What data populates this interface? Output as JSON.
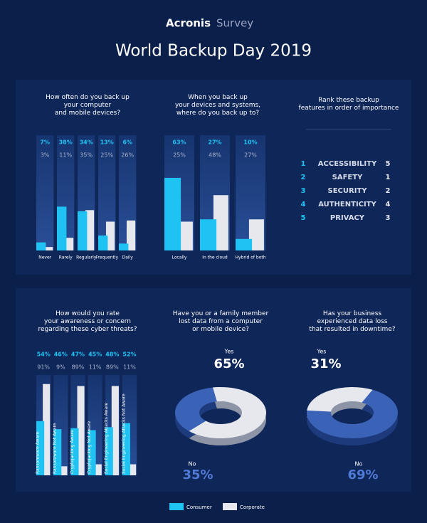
{
  "header": {
    "brand": "Acronis",
    "label": "Survey",
    "title": "World Backup Day 2019"
  },
  "chart_data": [
    {
      "type": "bar",
      "title": "How often do you back up\nyour computer\nand mobile devices?",
      "categories": [
        "Never",
        "Rarely",
        "Regularly",
        "Frequently",
        "Daily"
      ],
      "series": [
        {
          "name": "Consumer",
          "color": "#1fc3f3",
          "values": [
            7,
            38,
            34,
            13,
            6
          ],
          "value_labels": [
            "7%",
            "38%",
            "34%",
            "13%",
            "6%"
          ]
        },
        {
          "name": "Corporate",
          "color": "#e6e8ed",
          "values": [
            3,
            11,
            35,
            25,
            26
          ],
          "value_labels": [
            "3%",
            "11%",
            "35%",
            "25%",
            "26%"
          ]
        }
      ],
      "ylim": [
        0,
        100
      ]
    },
    {
      "type": "bar",
      "title": "When you back up\nyour devices and systems,\nwhere do you back up to?",
      "categories": [
        "Locally",
        "In the cloud",
        "Hybrid of both"
      ],
      "series": [
        {
          "color": "#1fc3f3",
          "values": [
            63,
            27,
            10
          ],
          "value_labels": [
            "63%",
            "27%",
            "10%"
          ]
        },
        {
          "color": "#e6e8ed",
          "values": [
            25,
            48,
            27
          ],
          "value_labels": [
            "25%",
            "48%",
            "27%"
          ]
        }
      ],
      "ylim": [
        0,
        100
      ]
    },
    {
      "type": "rank",
      "title": "Rank these backup\nfeatures in order of importance",
      "categories": [
        "ACCESSIBILITY",
        "SAFETY",
        "SECURITY",
        "AUTHENTICITY",
        "PRIVACY"
      ],
      "series": [
        {
          "color": "#1fc3f3",
          "values": [
            1,
            2,
            3,
            4,
            5
          ]
        },
        {
          "color": "#e6e8ed",
          "values": [
            5,
            1,
            2,
            4,
            3
          ]
        }
      ]
    },
    {
      "type": "bar",
      "title": "How would you rate\nyour awareness or concern\nregarding these cyber threats?",
      "categories": [
        "Ransomware Aware",
        "Ransomware Not Aware",
        "Cryptojacking Aware",
        "Cryptojacking Not Aware",
        "Social Engineering Attacks Aware",
        "Social Engineering Attacks Not Aware"
      ],
      "series": [
        {
          "color": "#1fc3f3",
          "values": [
            54,
            46,
            47,
            45,
            48,
            52
          ],
          "value_labels": [
            "54%",
            "46%",
            "47%",
            "45%",
            "48%",
            "52%"
          ]
        },
        {
          "color": "#e6e8ed",
          "values": [
            91,
            9,
            89,
            11,
            89,
            11
          ],
          "value_labels": [
            "91%",
            "9%",
            "89%",
            "11%",
            "89%",
            "11%"
          ]
        }
      ],
      "ylim": [
        0,
        100
      ]
    },
    {
      "type": "pie",
      "title": "Have you or a family member\nlost data from a computer\nor mobile device?",
      "categories": [
        "Yes",
        "No"
      ],
      "values": [
        65,
        35
      ],
      "value_labels": [
        "65%",
        "35%"
      ],
      "colors": [
        "#e6e8ed",
        "#3a63b8"
      ]
    },
    {
      "type": "pie",
      "title": "Has your business\nexperienced data loss\nthat resulted in downtime?",
      "categories": [
        "Yes",
        "No"
      ],
      "values": [
        31,
        69
      ],
      "value_labels": [
        "31%",
        "69%"
      ],
      "colors": [
        "#e6e8ed",
        "#3a63b8"
      ]
    }
  ]
}
